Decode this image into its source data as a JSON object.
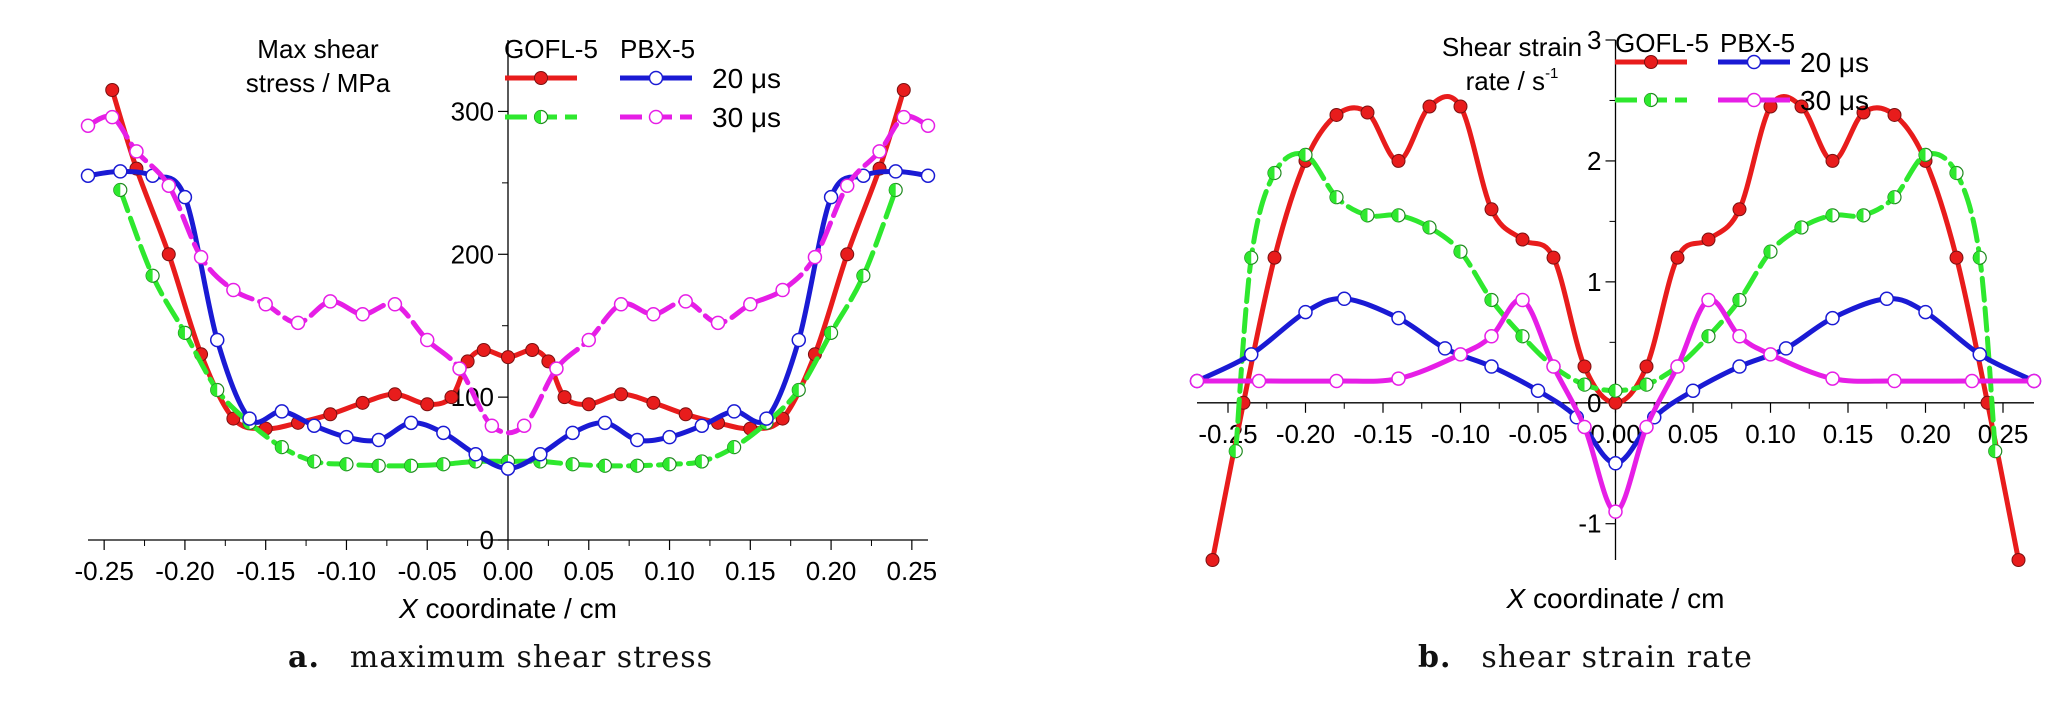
{
  "chart_data": [
    {
      "type": "line",
      "panel_label": "a.",
      "caption": "maximum shear stress",
      "ylabel_lines": [
        "Max shear",
        "stress / MPa"
      ],
      "xlabel_italic": "X",
      "xlabel_rest": " coordinate / cm",
      "xlim": [
        -0.26,
        0.26
      ],
      "ylim": [
        0,
        350
      ],
      "xticks": [
        -0.25,
        -0.2,
        -0.15,
        -0.1,
        -0.05,
        0.0,
        0.05,
        0.1,
        0.15,
        0.2,
        0.25
      ],
      "xtick_labels": [
        "-0.25",
        "-0.20",
        "-0.15",
        "-0.10",
        "-0.05",
        "0.00",
        "0.05",
        "0.10",
        "0.15",
        "0.20",
        "0.25"
      ],
      "yticks": [
        0,
        100,
        200,
        300
      ],
      "ytick_labels": [
        "0",
        "100",
        "200",
        "300"
      ],
      "legend": {
        "header_left": "GOFL-5",
        "header_right": "PBX-5",
        "row1_label": "20 μs",
        "row2_label": "30 μs"
      },
      "series": [
        {
          "material": "GOFL-5",
          "time": "20 μs",
          "color": "#e81c1c",
          "dashed": false,
          "marker": "filled",
          "x": [
            -0.245,
            -0.23,
            -0.21,
            -0.19,
            -0.17,
            -0.15,
            -0.13,
            -0.11,
            -0.09,
            -0.07,
            -0.05,
            -0.035,
            -0.025,
            -0.015,
            0.0,
            0.015,
            0.025,
            0.035,
            0.05,
            0.07,
            0.09,
            0.11,
            0.13,
            0.15,
            0.17,
            0.19,
            0.21,
            0.23,
            0.245
          ],
          "y": [
            315,
            260,
            200,
            130,
            85,
            78,
            82,
            88,
            96,
            102,
            95,
            100,
            125,
            133,
            128,
            133,
            125,
            100,
            95,
            102,
            96,
            88,
            82,
            78,
            85,
            130,
            200,
            260,
            315
          ]
        },
        {
          "material": "GOFL-5",
          "time": "30 μs",
          "color": "#2ee82e",
          "dashed": true,
          "marker": "half",
          "x": [
            -0.24,
            -0.22,
            -0.2,
            -0.18,
            -0.16,
            -0.14,
            -0.12,
            -0.1,
            -0.08,
            -0.06,
            -0.04,
            -0.02,
            0.0,
            0.02,
            0.04,
            0.06,
            0.08,
            0.1,
            0.12,
            0.14,
            0.16,
            0.18,
            0.2,
            0.22,
            0.24
          ],
          "y": [
            245,
            185,
            145,
            105,
            82,
            65,
            55,
            53,
            52,
            52,
            53,
            55,
            55,
            55,
            53,
            52,
            52,
            53,
            55,
            65,
            82,
            105,
            145,
            185,
            245
          ]
        },
        {
          "material": "PBX-5",
          "time": "20 μs",
          "color": "#1a1ad4",
          "dashed": false,
          "marker": "open",
          "x": [
            -0.26,
            -0.24,
            -0.22,
            -0.2,
            -0.18,
            -0.16,
            -0.14,
            -0.12,
            -0.1,
            -0.08,
            -0.06,
            -0.04,
            -0.02,
            0.0,
            0.02,
            0.04,
            0.06,
            0.08,
            0.1,
            0.12,
            0.14,
            0.16,
            0.18,
            0.2,
            0.22,
            0.24,
            0.26
          ],
          "y": [
            255,
            258,
            255,
            240,
            140,
            85,
            90,
            80,
            72,
            70,
            82,
            75,
            60,
            50,
            60,
            75,
            82,
            70,
            72,
            80,
            90,
            85,
            140,
            240,
            255,
            258,
            255
          ]
        },
        {
          "material": "PBX-5",
          "time": "30 μs",
          "color": "#e61ee6",
          "dashed": true,
          "marker": "open",
          "x": [
            -0.26,
            -0.245,
            -0.23,
            -0.21,
            -0.19,
            -0.17,
            -0.15,
            -0.13,
            -0.11,
            -0.09,
            -0.07,
            -0.05,
            -0.03,
            -0.01,
            0.01,
            0.03,
            0.05,
            0.07,
            0.09,
            0.11,
            0.13,
            0.15,
            0.17,
            0.19,
            0.21,
            0.23,
            0.245,
            0.26
          ],
          "y": [
            290,
            296,
            272,
            248,
            198,
            175,
            165,
            152,
            167,
            158,
            165,
            140,
            120,
            80,
            80,
            120,
            140,
            165,
            158,
            167,
            152,
            165,
            175,
            198,
            248,
            272,
            296,
            290
          ]
        }
      ]
    },
    {
      "type": "line",
      "panel_label": "b.",
      "caption": "shear strain rate",
      "ylabel_lines": [
        "Shear strain",
        "rate / s"
      ],
      "ylabel_superscript": "-1",
      "xlabel_italic": "X",
      "xlabel_rest": " coordinate / cm",
      "xlim": [
        -0.27,
        0.27
      ],
      "ylim": [
        -1.3,
        3.0
      ],
      "xticks": [
        -0.25,
        -0.2,
        -0.15,
        -0.1,
        -0.05,
        0.0,
        0.05,
        0.1,
        0.15,
        0.2,
        0.25
      ],
      "xtick_labels": [
        "-0.25",
        "-0.20",
        "-0.15",
        "-0.10",
        "-0.05",
        "0.00",
        "0.05",
        "0.10",
        "0.15",
        "0.20",
        "0.25"
      ],
      "yticks": [
        -1,
        0,
        1,
        2,
        3
      ],
      "ytick_labels": [
        "-1",
        "0",
        "1",
        "2",
        "3"
      ],
      "legend": {
        "header_left": "GOFL-5",
        "header_right": "PBX-5",
        "row1_label": "20 μs",
        "row2_label": "30 μs"
      },
      "series": [
        {
          "material": "GOFL-5",
          "time": "20 μs",
          "color": "#e81c1c",
          "dashed": false,
          "marker": "filled",
          "x": [
            -0.26,
            -0.24,
            -0.22,
            -0.2,
            -0.18,
            -0.16,
            -0.14,
            -0.12,
            -0.1,
            -0.08,
            -0.06,
            -0.04,
            -0.02,
            0.0,
            0.02,
            0.04,
            0.06,
            0.08,
            0.1,
            0.12,
            0.14,
            0.16,
            0.18,
            0.2,
            0.22,
            0.24,
            0.26
          ],
          "y": [
            -1.3,
            0.0,
            1.2,
            2.0,
            2.38,
            2.4,
            2.0,
            2.45,
            2.45,
            1.6,
            1.35,
            1.2,
            0.3,
            0.0,
            0.3,
            1.2,
            1.35,
            1.6,
            2.45,
            2.45,
            2.0,
            2.4,
            2.38,
            2.0,
            1.2,
            0.0,
            -1.3
          ]
        },
        {
          "material": "GOFL-5",
          "time": "30 μs",
          "color": "#2ee82e",
          "dashed": true,
          "marker": "half",
          "x": [
            -0.245,
            -0.235,
            -0.22,
            -0.2,
            -0.18,
            -0.16,
            -0.14,
            -0.12,
            -0.1,
            -0.08,
            -0.06,
            -0.04,
            -0.02,
            0.0,
            0.02,
            0.04,
            0.06,
            0.08,
            0.1,
            0.12,
            0.14,
            0.16,
            0.18,
            0.2,
            0.22,
            0.235,
            0.245
          ],
          "y": [
            -0.4,
            1.2,
            1.9,
            2.05,
            1.7,
            1.55,
            1.55,
            1.45,
            1.25,
            0.85,
            0.55,
            0.3,
            0.15,
            0.1,
            0.15,
            0.3,
            0.55,
            0.85,
            1.25,
            1.45,
            1.55,
            1.55,
            1.7,
            2.05,
            1.9,
            1.2,
            -0.4
          ]
        },
        {
          "material": "PBX-5",
          "time": "20 μs",
          "color": "#1a1ad4",
          "dashed": false,
          "marker": "open",
          "x": [
            -0.27,
            -0.235,
            -0.2,
            -0.175,
            -0.14,
            -0.11,
            -0.08,
            -0.05,
            -0.025,
            0.0,
            0.025,
            0.05,
            0.08,
            0.11,
            0.14,
            0.175,
            0.2,
            0.235,
            0.27
          ],
          "y": [
            0.18,
            0.4,
            0.75,
            0.86,
            0.7,
            0.45,
            0.3,
            0.1,
            -0.12,
            -0.5,
            -0.12,
            0.1,
            0.3,
            0.45,
            0.7,
            0.86,
            0.75,
            0.4,
            0.18
          ]
        },
        {
          "material": "PBX-5",
          "time": "30 μs",
          "color": "#e61ee6",
          "dashed": false,
          "marker": "open",
          "x": [
            -0.27,
            -0.23,
            -0.18,
            -0.14,
            -0.1,
            -0.08,
            -0.06,
            -0.04,
            -0.02,
            0.0,
            0.02,
            0.04,
            0.06,
            0.08,
            0.1,
            0.14,
            0.18,
            0.23,
            0.27
          ],
          "y": [
            0.18,
            0.18,
            0.18,
            0.2,
            0.4,
            0.55,
            0.85,
            0.3,
            -0.2,
            -0.9,
            -0.2,
            0.3,
            0.85,
            0.55,
            0.4,
            0.2,
            0.18,
            0.18,
            0.18
          ]
        }
      ]
    }
  ]
}
